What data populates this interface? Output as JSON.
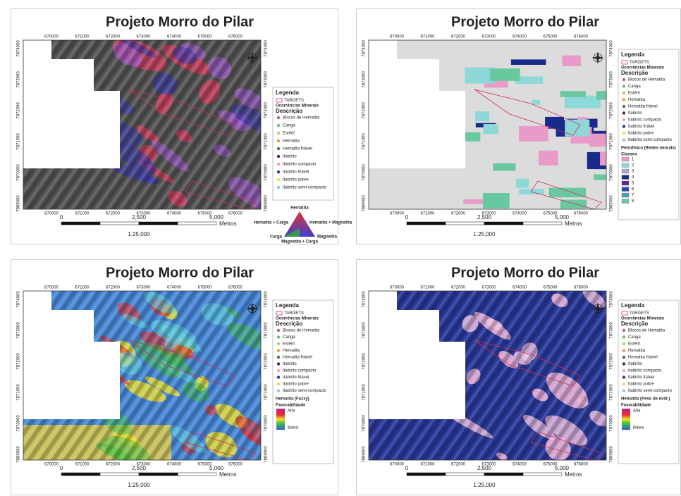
{
  "common": {
    "x_ticks": [
      "670000",
      "671000",
      "672000",
      "673000",
      "674000",
      "675000",
      "676000"
    ],
    "y_ticks": [
      "7874000",
      "7873000",
      "7872000",
      "7871000",
      "7870000",
      "7869000"
    ],
    "scale": {
      "zero": "0",
      "mid": "2,500",
      "end": "5,000",
      "unit": "Metros",
      "ratio": "1:25,000"
    },
    "legend": {
      "title": "Legenda",
      "targets": "TARGETS",
      "occurrences": "Ocorrências Minerais",
      "description": "Descrição",
      "items": [
        {
          "label": "Blocos de Hematita",
          "color": "#c05aa0"
        },
        {
          "label": "Canga",
          "color": "#6fbf7a"
        },
        {
          "label": "Estéril",
          "color": "#a6d86a"
        },
        {
          "label": "Hematita",
          "color": "#e89a3c"
        },
        {
          "label": "Hematita friável",
          "color": "#3f7f3a"
        },
        {
          "label": "Itabirito",
          "color": "#5a1f5f"
        },
        {
          "label": "Itabirito compacto",
          "color": "#f0a0c8"
        },
        {
          "label": "Itabirito friável",
          "color": "#2a3f9a"
        },
        {
          "label": "Itabirito pobre",
          "color": "#e8e04a"
        },
        {
          "label": "Itabirito semi-compacto",
          "color": "#8ec8e8"
        }
      ]
    }
  },
  "panels": [
    {
      "title": "Projeto Morro do Pilar",
      "ternary": {
        "top": "Hematita",
        "left_mid": "Hematita + Carga",
        "right_mid": "Hematita + Magnetita",
        "left": "Carga",
        "right": "Magnetita",
        "bottom": "Magnetita + Carga"
      }
    },
    {
      "title": "Projeto Morro do Pilar",
      "classes_title": "Petrofísico (Redes neurais)",
      "classes_sub": "Classes",
      "classes": [
        {
          "label": "1",
          "color": "#e89ac8"
        },
        {
          "label": "2",
          "color": "#8fd8d8"
        },
        {
          "label": "3",
          "color": "#b0a8d8"
        },
        {
          "label": "4",
          "color": "#1a2a8a"
        },
        {
          "label": "5",
          "color": "#5a2a8a"
        },
        {
          "label": "6",
          "color": "#2a4aa8"
        },
        {
          "label": "7",
          "color": "#4aa0b0"
        },
        {
          "label": "8",
          "color": "#6ac8a0"
        }
      ]
    },
    {
      "title": "Projeto Morro do Pilar",
      "ramp_title": "Hematita (Fuzzy)",
      "ramp_sub": "Favorabilidade",
      "high": "Alta",
      "low": "Baixa"
    },
    {
      "title": "Projeto Morro do Pilar",
      "ramp_title": "Hematita (Peso de evid.)",
      "ramp_sub": "Favorabilidade",
      "high": "Alta",
      "low": "Baixa"
    }
  ]
}
